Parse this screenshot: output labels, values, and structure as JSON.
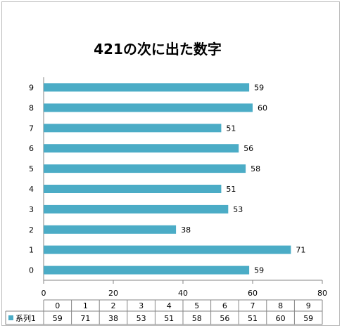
{
  "chart_data": {
    "type": "bar",
    "orientation": "horizontal",
    "title": "421の次に出た数字",
    "categories": [
      "0",
      "1",
      "2",
      "3",
      "4",
      "5",
      "6",
      "7",
      "8",
      "9"
    ],
    "series": [
      {
        "name": "系列1",
        "values": [
          59,
          71,
          38,
          53,
          51,
          58,
          56,
          51,
          60,
          59
        ]
      }
    ],
    "xlim": [
      0,
      80
    ],
    "x_ticks": [
      "0",
      "20",
      "40",
      "60",
      "80"
    ],
    "grid": false,
    "legend": "data-table-bottom",
    "color": "#4bacc6"
  }
}
